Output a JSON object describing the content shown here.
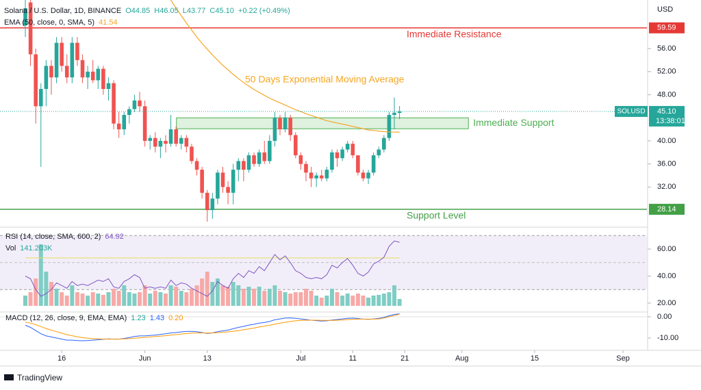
{
  "header": {
    "title": "Solana / U.S. Dollar, 1D, BINANCE",
    "ohlc": [
      "O44.85",
      "H46.05",
      "L43.77",
      "C45.10"
    ],
    "change": "+0.22 (+0.49%)",
    "ema_title": "EMA (50, close, 0, SMA, 5)",
    "ema_value": "41.54"
  },
  "branding": "TradingView",
  "chart_data": [
    {
      "type": "candlestick",
      "currency": "USD",
      "xlim": [
        -4.875,
        119.6
      ],
      "xticks": [
        {
          "value": 7,
          "label": "16"
        },
        {
          "value": 23,
          "label": "Jun"
        },
        {
          "value": 35,
          "label": "13"
        },
        {
          "value": 53,
          "label": "Jul"
        },
        {
          "value": 63,
          "label": "11"
        },
        {
          "value": 73,
          "label": "21"
        },
        {
          "value": 84,
          "label": "Aug"
        },
        {
          "value": 98,
          "label": "15"
        },
        {
          "value": 115,
          "label": "Sep"
        }
      ],
      "ylim": [
        25.28,
        64.42
      ],
      "yticks": [
        {
          "value": 56,
          "label": "56.00"
        },
        {
          "value": 52,
          "label": "52.00"
        },
        {
          "value": 48,
          "label": "48.00"
        },
        {
          "value": 40,
          "label": "40.00"
        },
        {
          "value": 36,
          "label": "36.00"
        },
        {
          "value": 32,
          "label": "32.00"
        }
      ],
      "up_color": "#26a69a",
      "down_color": "#ef5350",
      "open": [
        60,
        64,
        55,
        46,
        49,
        53,
        51,
        57,
        53,
        51,
        57,
        54,
        51,
        52,
        50.5,
        52.5,
        49,
        50,
        43,
        42,
        44.5,
        45.5,
        47,
        46,
        40,
        40.5,
        39,
        40,
        39.5,
        42,
        39.5,
        40.5,
        39,
        36.5,
        35,
        31,
        28,
        30,
        34.5,
        32,
        31,
        35,
        36.5,
        35,
        37.5,
        36,
        38,
        36.5,
        40,
        44,
        42,
        44,
        41,
        37.5,
        36,
        34.5,
        33.5,
        34,
        33.5,
        35,
        38,
        37,
        38.5,
        39.5,
        37.5,
        34.5,
        33.5,
        34.5,
        37.5,
        38.5,
        40.5,
        44.5,
        44.85
      ],
      "high": [
        65,
        65,
        56,
        50,
        54,
        54,
        58,
        58,
        55,
        58,
        58,
        55,
        53,
        54,
        53,
        53,
        51,
        50.5,
        45,
        45,
        46,
        48,
        48.5,
        47,
        41,
        41.5,
        40.5,
        41,
        44.5,
        42.5,
        41,
        41,
        39.5,
        37,
        35.5,
        31.5,
        31,
        35,
        35.5,
        33,
        36,
        37,
        37,
        38,
        38,
        38.5,
        40,
        41,
        45,
        44.5,
        45,
        44.5,
        41.5,
        38,
        36.5,
        35.5,
        34.5,
        35,
        35.5,
        38.5,
        38.5,
        39,
        40,
        40,
        37.5,
        35,
        35,
        38,
        39,
        41,
        45,
        47.5,
        46.05
      ],
      "low": [
        58,
        53,
        43,
        35.5,
        46,
        48,
        50,
        52,
        50,
        50,
        53,
        50,
        49,
        50,
        49,
        48,
        47,
        42,
        40.5,
        41,
        43,
        45,
        45,
        39,
        38.5,
        38,
        37,
        38,
        39,
        39,
        38.5,
        38,
        36,
        34,
        30,
        26,
        26.5,
        29,
        31,
        29,
        29,
        33,
        33,
        34.5,
        35.5,
        35.5,
        36,
        36,
        39,
        41,
        41.5,
        40,
        37,
        35,
        33,
        32,
        32,
        33,
        33,
        34.5,
        35.5,
        36.5,
        38,
        37,
        34,
        33,
        32.5,
        34,
        37,
        38,
        40,
        42,
        43.77
      ],
      "close": [
        63,
        55,
        46,
        49,
        53,
        51,
        57,
        53,
        51,
        57,
        54,
        51,
        52,
        50.5,
        52.5,
        49,
        50,
        43,
        42,
        44.5,
        45.5,
        47,
        46,
        40,
        40.5,
        39,
        40,
        39.5,
        42,
        39.5,
        40.5,
        39,
        36.5,
        35,
        31,
        28,
        30,
        34.5,
        32,
        31,
        35,
        36.5,
        35,
        37.5,
        36,
        38,
        36.5,
        40,
        44,
        42,
        44,
        41,
        37.5,
        36,
        34.5,
        33.5,
        34,
        33.5,
        35,
        38,
        37,
        38.5,
        39.5,
        37.5,
        34.5,
        33.5,
        34.5,
        37.5,
        38.5,
        40.5,
        44.5,
        44.88,
        45.1
      ],
      "ema": {
        "name": "50 Days Exponential Moving Average",
        "color": "#f5a623",
        "values": [
          null,
          null,
          null,
          null,
          null,
          null,
          null,
          null,
          null,
          null,
          null,
          null,
          null,
          null,
          null,
          null,
          null,
          null,
          null,
          null,
          null,
          null,
          null,
          null,
          null,
          null,
          null,
          65.5,
          64.4,
          63,
          61.7,
          60.4,
          59.2,
          58,
          56.9,
          55.9,
          54.9,
          54,
          53.1,
          52.3,
          51.5,
          50.8,
          50.1,
          49.5,
          48.9,
          48.4,
          47.9,
          47.4,
          47,
          46.6,
          46.2,
          45.8,
          45.4,
          45.1,
          44.7,
          44.4,
          44.1,
          43.8,
          43.5,
          43.3,
          43.1,
          42.9,
          42.7,
          42.5,
          42.3,
          42.1,
          41.9,
          41.8,
          41.7,
          41.6,
          41.55,
          41.5,
          41.54
        ]
      },
      "levels": [
        {
          "name": "Immediate Resistance",
          "value": 59.59,
          "color": "#e53935"
        },
        {
          "name": "Support Level",
          "value": 28.14,
          "color": "#43a047"
        }
      ],
      "zone": {
        "name": "Immediate Support",
        "range": [
          42.1,
          44.0
        ],
        "color": "#4caf50"
      },
      "last_price": {
        "symbol": "SOLUSD",
        "value": 45.1,
        "label": "45.10",
        "countdown": "13:38:01",
        "color": "#26a69a"
      }
    },
    {
      "type": "line",
      "title": "RSI (14, close, SMA, 600, 2)",
      "value_label": "64.92",
      "ylim": [
        13.9,
        74.7
      ],
      "yticks": [
        {
          "value": 60,
          "label": "60.00"
        },
        {
          "value": 40,
          "label": "40.00"
        },
        {
          "value": 20,
          "label": "20.00"
        }
      ],
      "band": [
        30,
        70
      ],
      "midline": 50,
      "sma": 53.46,
      "series": [
        {
          "name": "RSI",
          "color": "#7e57c2",
          "values": [
            40,
            38,
            30,
            25,
            27,
            30,
            35,
            33,
            31,
            36,
            33,
            34,
            33,
            35,
            37,
            36,
            38,
            32,
            31,
            36,
            38,
            41,
            39,
            31,
            32,
            31,
            32,
            31,
            37,
            33,
            35,
            34,
            31,
            29,
            27,
            25,
            29,
            36,
            33,
            31,
            38,
            42,
            39,
            44,
            42,
            47,
            44,
            50,
            56,
            52,
            55,
            50,
            44,
            42,
            39,
            38,
            39,
            38,
            41,
            48,
            46,
            50,
            53,
            48,
            42,
            40,
            43,
            49,
            51,
            54,
            62,
            66,
            65
          ]
        }
      ],
      "volume": {
        "title": "Vol",
        "last_label": "141.203K",
        "values": [
          212,
          282,
          565,
          1271,
          706,
          494,
          353,
          282,
          212,
          424,
          282,
          254,
          212,
          282,
          254,
          226,
          282,
          353,
          311,
          424,
          282,
          254,
          282,
          424,
          254,
          311,
          282,
          254,
          424,
          395,
          311,
          282,
          353,
          424,
          565,
          706,
          494,
          565,
          424,
          395,
          494,
          424,
          353,
          395,
          353,
          395,
          311,
          353,
          424,
          311,
          282,
          254,
          282,
          282,
          353,
          311,
          212,
          169,
          212,
          353,
          282,
          212,
          254,
          212,
          254,
          212,
          169,
          212,
          226,
          254,
          282,
          424,
          141.203
        ]
      }
    },
    {
      "type": "line",
      "title": "MACD (12, 26, close, 9, EMA, EMA)",
      "value_labels": [
        "1.23",
        "1.43",
        "0.20"
      ],
      "ylim": [
        -15.8,
        1.94
      ],
      "yticks": [
        {
          "value": 0,
          "label": "0.00"
        },
        {
          "value": -10,
          "label": "-10.00"
        }
      ],
      "series": [
        {
          "name": "MACD",
          "color": "#2962ff",
          "values": [
            -4,
            -5,
            -6.5,
            -8,
            -9,
            -9.5,
            -10,
            -10.5,
            -11,
            -11,
            -11.2,
            -11.3,
            -11.2,
            -11,
            -10.8,
            -10.6,
            -10.4,
            -10.5,
            -10.5,
            -10.2,
            -9.8,
            -9.3,
            -9,
            -9,
            -8.8,
            -8.6,
            -8.3,
            -8,
            -7.6,
            -7.4,
            -7.1,
            -6.9,
            -6.9,
            -7,
            -7.4,
            -7.8,
            -7.6,
            -7,
            -6.6,
            -6.3,
            -5.6,
            -5,
            -4.5,
            -3.9,
            -3.5,
            -3,
            -2.7,
            -2.2,
            -1.4,
            -1,
            -0.6,
            -0.5,
            -0.7,
            -1,
            -1.3,
            -1.6,
            -1.8,
            -2,
            -1.9,
            -1.5,
            -1.3,
            -1,
            -0.7,
            -0.6,
            -0.8,
            -1.1,
            -1.2,
            -1,
            -0.7,
            -0.3,
            0.5,
            1.1,
            1.43
          ]
        },
        {
          "name": "Signal",
          "color": "#ff9800",
          "values": [
            -2.5,
            -3,
            -3.7,
            -4.6,
            -5.5,
            -6.3,
            -7,
            -7.7,
            -8.4,
            -8.9,
            -9.4,
            -9.8,
            -10.1,
            -10.3,
            -10.4,
            -10.5,
            -10.5,
            -10.5,
            -10.5,
            -10.4,
            -10.3,
            -10.1,
            -9.9,
            -9.7,
            -9.5,
            -9.3,
            -9.1,
            -8.9,
            -8.6,
            -8.4,
            -8.1,
            -7.9,
            -7.7,
            -7.6,
            -7.6,
            -7.6,
            -7.6,
            -7.5,
            -7.3,
            -7.1,
            -6.8,
            -6.5,
            -6.1,
            -5.7,
            -5.3,
            -4.8,
            -4.4,
            -4,
            -3.5,
            -3,
            -2.6,
            -2.2,
            -1.9,
            -1.7,
            -1.6,
            -1.6,
            -1.6,
            -1.7,
            -1.7,
            -1.7,
            -1.6,
            -1.5,
            -1.3,
            -1.2,
            -1.1,
            -1.1,
            -1.1,
            -1.1,
            -1,
            -0.5,
            0,
            0.6,
            1.23
          ]
        }
      ]
    }
  ]
}
